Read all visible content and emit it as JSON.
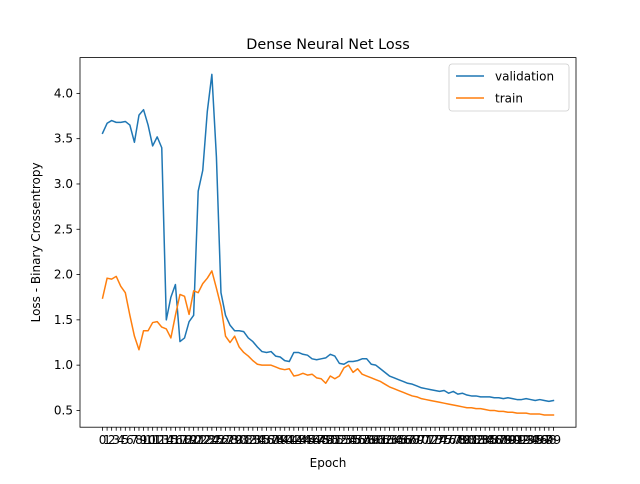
{
  "chart_data": {
    "type": "line",
    "title": "Dense Neural Net Loss",
    "xlabel": "Epoch",
    "ylabel": "Loss - Binary Crossentropy",
    "xlim": [
      -4.95,
      103.95
    ],
    "ylim": [
      0.315,
      4.395
    ],
    "yticks": [
      0.5,
      1.0,
      1.5,
      2.0,
      2.5,
      3.0,
      3.5,
      4.0
    ],
    "ytick_labels": [
      "0.5",
      "1.0",
      "1.5",
      "2.0",
      "2.5",
      "3.0",
      "3.5",
      "4.0"
    ],
    "legend_position": "upper right",
    "x": [
      0,
      1,
      2,
      3,
      4,
      5,
      6,
      7,
      8,
      9,
      10,
      11,
      12,
      13,
      14,
      15,
      16,
      17,
      18,
      19,
      20,
      21,
      22,
      23,
      24,
      25,
      26,
      27,
      28,
      29,
      30,
      31,
      32,
      33,
      34,
      35,
      36,
      37,
      38,
      39,
      40,
      41,
      42,
      43,
      44,
      45,
      46,
      47,
      48,
      49,
      50,
      51,
      52,
      53,
      54,
      55,
      56,
      57,
      58,
      59,
      60,
      61,
      62,
      63,
      64,
      65,
      66,
      67,
      68,
      69,
      70,
      71,
      72,
      73,
      74,
      75,
      76,
      77,
      78,
      79,
      80,
      81,
      82,
      83,
      84,
      85,
      86,
      87,
      88,
      89,
      90,
      91,
      92,
      93,
      94,
      95,
      96,
      97,
      98,
      99
    ],
    "series": [
      {
        "name": "validation",
        "color": "#1f77b4",
        "values": [
          3.56,
          3.67,
          3.7,
          3.68,
          3.68,
          3.69,
          3.65,
          3.46,
          3.76,
          3.82,
          3.65,
          3.42,
          3.52,
          3.4,
          1.5,
          1.75,
          1.89,
          1.26,
          1.3,
          1.48,
          1.55,
          2.92,
          3.15,
          3.8,
          4.21,
          3.3,
          1.8,
          1.55,
          1.44,
          1.38,
          1.38,
          1.37,
          1.3,
          1.26,
          1.2,
          1.15,
          1.14,
          1.15,
          1.1,
          1.09,
          1.05,
          1.04,
          1.14,
          1.14,
          1.12,
          1.11,
          1.07,
          1.06,
          1.07,
          1.08,
          1.12,
          1.1,
          1.02,
          1.01,
          1.04,
          1.04,
          1.05,
          1.07,
          1.07,
          1.01,
          1.0,
          0.96,
          0.92,
          0.88,
          0.86,
          0.84,
          0.82,
          0.8,
          0.79,
          0.77,
          0.75,
          0.74,
          0.73,
          0.72,
          0.71,
          0.72,
          0.69,
          0.71,
          0.68,
          0.69,
          0.67,
          0.66,
          0.66,
          0.65,
          0.65,
          0.65,
          0.64,
          0.64,
          0.63,
          0.64,
          0.63,
          0.62,
          0.62,
          0.63,
          0.62,
          0.61,
          0.62,
          0.61,
          0.6,
          0.61
        ],
        "values_extended_note": ""
      },
      {
        "name": "train",
        "color": "#ff7f0e",
        "values": [
          1.74,
          1.96,
          1.95,
          1.98,
          1.87,
          1.8,
          1.55,
          1.32,
          1.17,
          1.38,
          1.38,
          1.47,
          1.48,
          1.42,
          1.4,
          1.3,
          1.55,
          1.78,
          1.76,
          1.56,
          1.82,
          1.8,
          1.9,
          1.96,
          2.04,
          1.85,
          1.65,
          1.32,
          1.25,
          1.32,
          1.2,
          1.14,
          1.1,
          1.05,
          1.01,
          1.0,
          1.0,
          1.0,
          0.98,
          0.96,
          0.95,
          0.96,
          0.88,
          0.89,
          0.91,
          0.89,
          0.9,
          0.86,
          0.85,
          0.8,
          0.88,
          0.85,
          0.88,
          0.97,
          1.0,
          0.92,
          0.96,
          0.9,
          0.88,
          0.86,
          0.84,
          0.82,
          0.79,
          0.76,
          0.74,
          0.72,
          0.7,
          0.68,
          0.66,
          0.65,
          0.63,
          0.62,
          0.61,
          0.6,
          0.59,
          0.58,
          0.57,
          0.56,
          0.55,
          0.54,
          0.53,
          0.53,
          0.52,
          0.52,
          0.51,
          0.5,
          0.5,
          0.49,
          0.49,
          0.48,
          0.48,
          0.47,
          0.47,
          0.47,
          0.46,
          0.46,
          0.46,
          0.45,
          0.45,
          0.45
        ]
      }
    ]
  }
}
